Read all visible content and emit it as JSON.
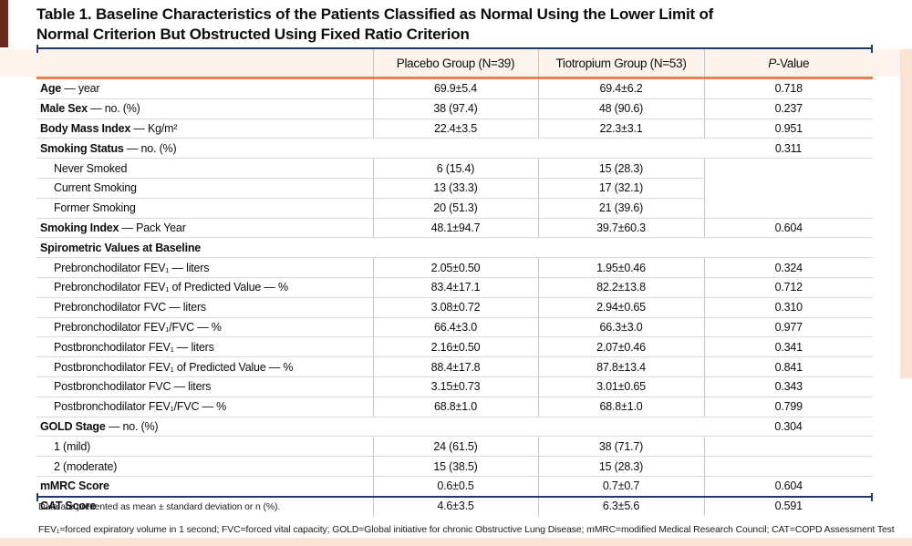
{
  "title": {
    "line1": "Table 1. Baseline Characteristics of the Patients Classified as Normal Using the Lower Limit of",
    "line2": "Normal Criterion But Obstructed Using Fixed Ratio Criterion"
  },
  "header": {
    "placebo": "Placebo Group (N=39)",
    "tiotropium": "Tiotropium Group (N=53)",
    "pvalue_italic": "P",
    "pvalue_rest": "-Value"
  },
  "rows": [
    {
      "label_bold": "Age",
      "label_rest": " — year",
      "placebo": "69.9±5.4",
      "tiotropium": "69.4±6.2",
      "p": "0.718"
    },
    {
      "label_bold": "Male Sex",
      "label_rest": " — no. (%)",
      "placebo": "38 (97.4)",
      "tiotropium": "48 (90.6)",
      "p": "0.237"
    },
    {
      "label_bold": "Body Mass Index",
      "label_rest": " — Kg/m²",
      "placebo": "22.4±3.5",
      "tiotropium": "22.3±3.1",
      "p": "0.951"
    },
    {
      "label_bold": "Smoking Status",
      "label_rest": " — no. (%)",
      "placebo": "",
      "tiotropium": "",
      "p": "0.311"
    },
    {
      "label": "Never Smoked",
      "placebo": "6 (15.4)",
      "tiotropium": "15 (28.3)",
      "p": ""
    },
    {
      "label": "Current Smoking",
      "placebo": "13 (33.3)",
      "tiotropium": "17 (32.1)",
      "p": ""
    },
    {
      "label": "Former Smoking",
      "placebo": "20 (51.3)",
      "tiotropium": "21 (39.6)",
      "p": ""
    },
    {
      "label_bold": "Smoking Index",
      "label_rest": " — Pack Year",
      "placebo": "48.1±94.7",
      "tiotropium": "39.7±60.3",
      "p": "0.604"
    },
    {
      "label_bold": "Spirometric Values at Baseline",
      "label_rest": "",
      "placebo": "",
      "tiotropium": "",
      "p": ""
    },
    {
      "label": "Prebronchodilator FEV₁ — liters",
      "placebo": "2.05±0.50",
      "tiotropium": "1.95±0.46",
      "p": "0.324"
    },
    {
      "label": "Prebronchodilator FEV₁ of Predicted Value — %",
      "placebo": "83.4±17.1",
      "tiotropium": "82.2±13.8",
      "p": "0.712"
    },
    {
      "label": "Prebronchodilator FVC — liters",
      "placebo": "3.08±0.72",
      "tiotropium": "2.94±0.65",
      "p": "0.310"
    },
    {
      "label": "Prebronchodilator FEV₁/FVC — %",
      "placebo": "66.4±3.0",
      "tiotropium": "66.3±3.0",
      "p": "0.977"
    },
    {
      "label": "Postbronchodilator FEV₁ — liters",
      "placebo": "2.16±0.50",
      "tiotropium": "2.07±0.46",
      "p": "0.341"
    },
    {
      "label": "Postbronchodilator FEV₁ of Predicted Value — %",
      "placebo": "88.4±17.8",
      "tiotropium": "87.8±13.4",
      "p": "0.841"
    },
    {
      "label": "Postbronchodilator FVC — liters",
      "placebo": "3.15±0.73",
      "tiotropium": "3.01±0.65",
      "p": "0.343"
    },
    {
      "label": "Postbronchodilator FEV₁/FVC — %",
      "placebo": "68.8±1.0",
      "tiotropium": "68.8±1.0",
      "p": "0.799"
    },
    {
      "label_bold": "GOLD Stage",
      "label_rest": " — no. (%)",
      "placebo": "",
      "tiotropium": "",
      "p": "0.304"
    },
    {
      "label": "1 (mild)",
      "placebo": "24 (61.5)",
      "tiotropium": "38 (71.7)",
      "p": ""
    },
    {
      "label": "2 (moderate)",
      "placebo": "15 (38.5)",
      "tiotropium": "15 (28.3)",
      "p": ""
    },
    {
      "label_bold": "mMRC Score",
      "label_rest": "",
      "placebo": "0.6±0.5",
      "tiotropium": "0.7±0.7",
      "p": "0.604"
    },
    {
      "label_bold": "CAT Score",
      "label_rest": "",
      "placebo": "4.6±3.5",
      "tiotropium": "6.3±5.6",
      "p": "0.591"
    }
  ],
  "footnotes": {
    "presentation": "Data are presented as mean ± standard deviation or n (%).",
    "abbreviations": "FEV₁=forced expiratory volume in 1 second; FVC=forced vital capacity; GOLD=Global initiative for chronic Obstructive Lung Disease; mMRC=modified Medical Research Council; CAT=COPD Assessment Test"
  },
  "colors": {
    "accent_maroon": "#6b2a1c",
    "rule_navy": "#1f3a68",
    "rule_orange": "#e8804f",
    "band_pink": "#fbe2d4",
    "header_band": "#fcf3ec"
  }
}
